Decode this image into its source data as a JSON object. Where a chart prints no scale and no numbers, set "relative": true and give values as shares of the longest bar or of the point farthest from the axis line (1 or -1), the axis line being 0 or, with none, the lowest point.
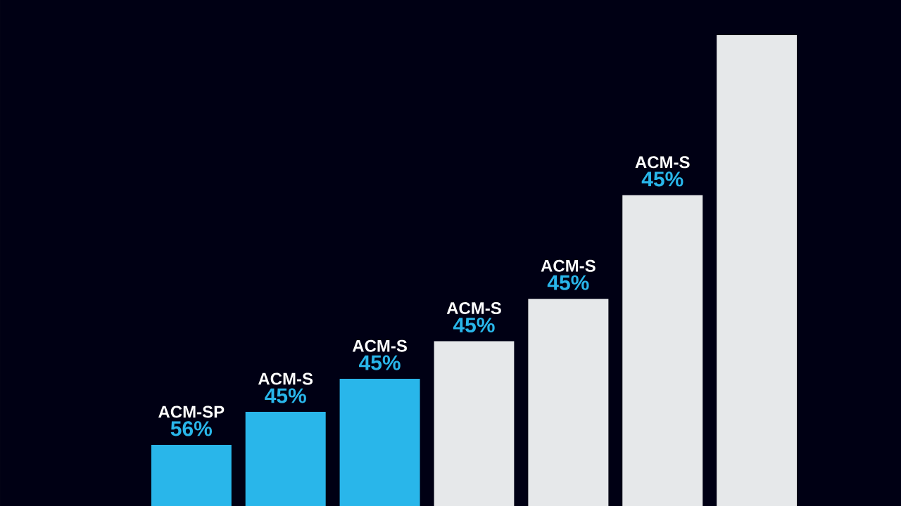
{
  "chart_data": {
    "type": "bar",
    "relative": true,
    "categories": [
      "ACM-SP",
      "ACM-S",
      "ACM-S",
      "ACM-S",
      "ACM-S",
      "ACM-S",
      null
    ],
    "values": [
      0.13,
      0.2,
      0.27,
      0.35,
      0.44,
      0.66,
      1
    ],
    "colors": [
      "#29b6ea",
      "#29b6ea",
      "#29b6ea",
      "#e6e8ea",
      "#e6e8ea",
      "#e6e8ea",
      "#e6e8ea"
    ],
    "annotations": [
      "56%",
      "45%",
      "45%",
      "45%",
      "45%",
      "45%"
    ]
  }
}
